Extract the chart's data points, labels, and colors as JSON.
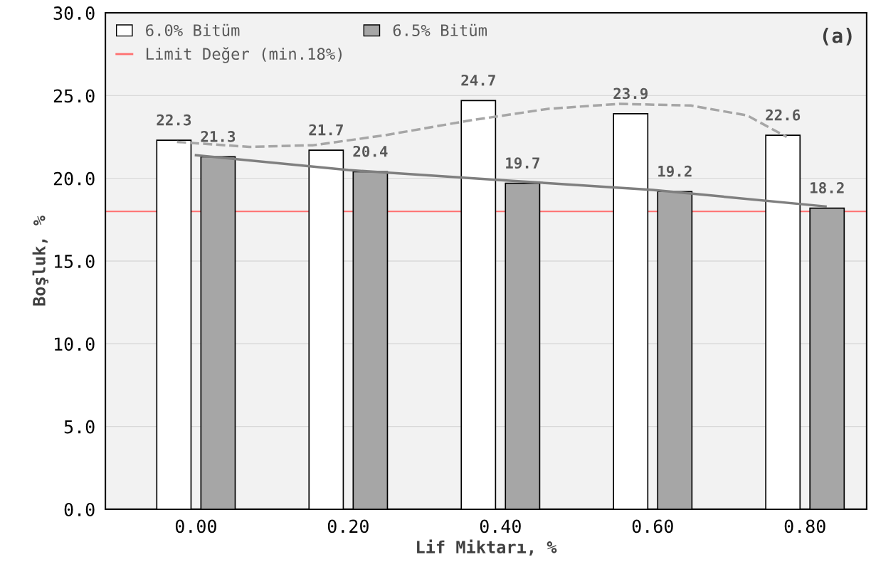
{
  "chart_data": {
    "type": "bar",
    "xlabel": "Lif Miktarı, %",
    "ylabel": "Boşluk, %",
    "x": [
      0,
      0.2,
      0.4,
      0.6,
      0.8
    ],
    "xlim": [
      -0.119,
      0.881
    ],
    "xticks": [
      {
        "value": 0,
        "label": "0.00"
      },
      {
        "value": 0.2,
        "label": "0.20"
      },
      {
        "value": 0.4,
        "label": "0.40"
      },
      {
        "value": 0.6,
        "label": "0.60"
      },
      {
        "value": 0.8,
        "label": "0.80"
      }
    ],
    "ylim": [
      0,
      30
    ],
    "yticks": [
      {
        "value": 0,
        "label": "0.0"
      },
      {
        "value": 5,
        "label": "5.0"
      },
      {
        "value": 10,
        "label": "10.0"
      },
      {
        "value": 15,
        "label": "15.0"
      },
      {
        "value": 20,
        "label": "20.0"
      },
      {
        "value": 25,
        "label": "25.0"
      },
      {
        "value": 30,
        "label": "30.0"
      }
    ],
    "series": [
      {
        "name": "6.0% Bitüm",
        "color": "#ffffff",
        "values": [
          22.3,
          21.7,
          24.7,
          23.9,
          22.6
        ],
        "value_labels": [
          "22.3",
          "21.7",
          "24.7",
          "23.9",
          "22.6"
        ]
      },
      {
        "name": "6.5% Bitüm",
        "color": "#a6a6a6",
        "values": [
          21.3,
          20.4,
          19.7,
          19.2,
          18.2
        ],
        "value_labels": [
          "21.3",
          "20.4",
          "19.7",
          "19.2",
          "18.2"
        ]
      },
      {
        "type": "line",
        "color": "#a6a6a6",
        "line_style": "dashed",
        "x": [
          -0.025,
          0.07,
          0.154,
          0.248,
          0.36,
          0.463,
          0.556,
          0.65,
          0.724,
          0.776
        ],
        "values": [
          22.2,
          21.9,
          22.0,
          22.6,
          23.5,
          24.2,
          24.5,
          24.4,
          23.8,
          22.5
        ]
      },
      {
        "type": "line",
        "color": "#7f7f7f",
        "line_style": "solid",
        "x": [
          0,
          0.2,
          0.397,
          0.6,
          0.827
        ],
        "values": [
          21.4,
          20.5,
          19.9,
          19.3,
          18.3
        ]
      }
    ],
    "ref_lines": [
      {
        "axis": "y",
        "value": 18,
        "label": "Limit Değer (min.18%)",
        "color": "#ff7070"
      }
    ],
    "grid": "y",
    "legend": "top left",
    "annotations": [
      "(a)"
    ]
  }
}
